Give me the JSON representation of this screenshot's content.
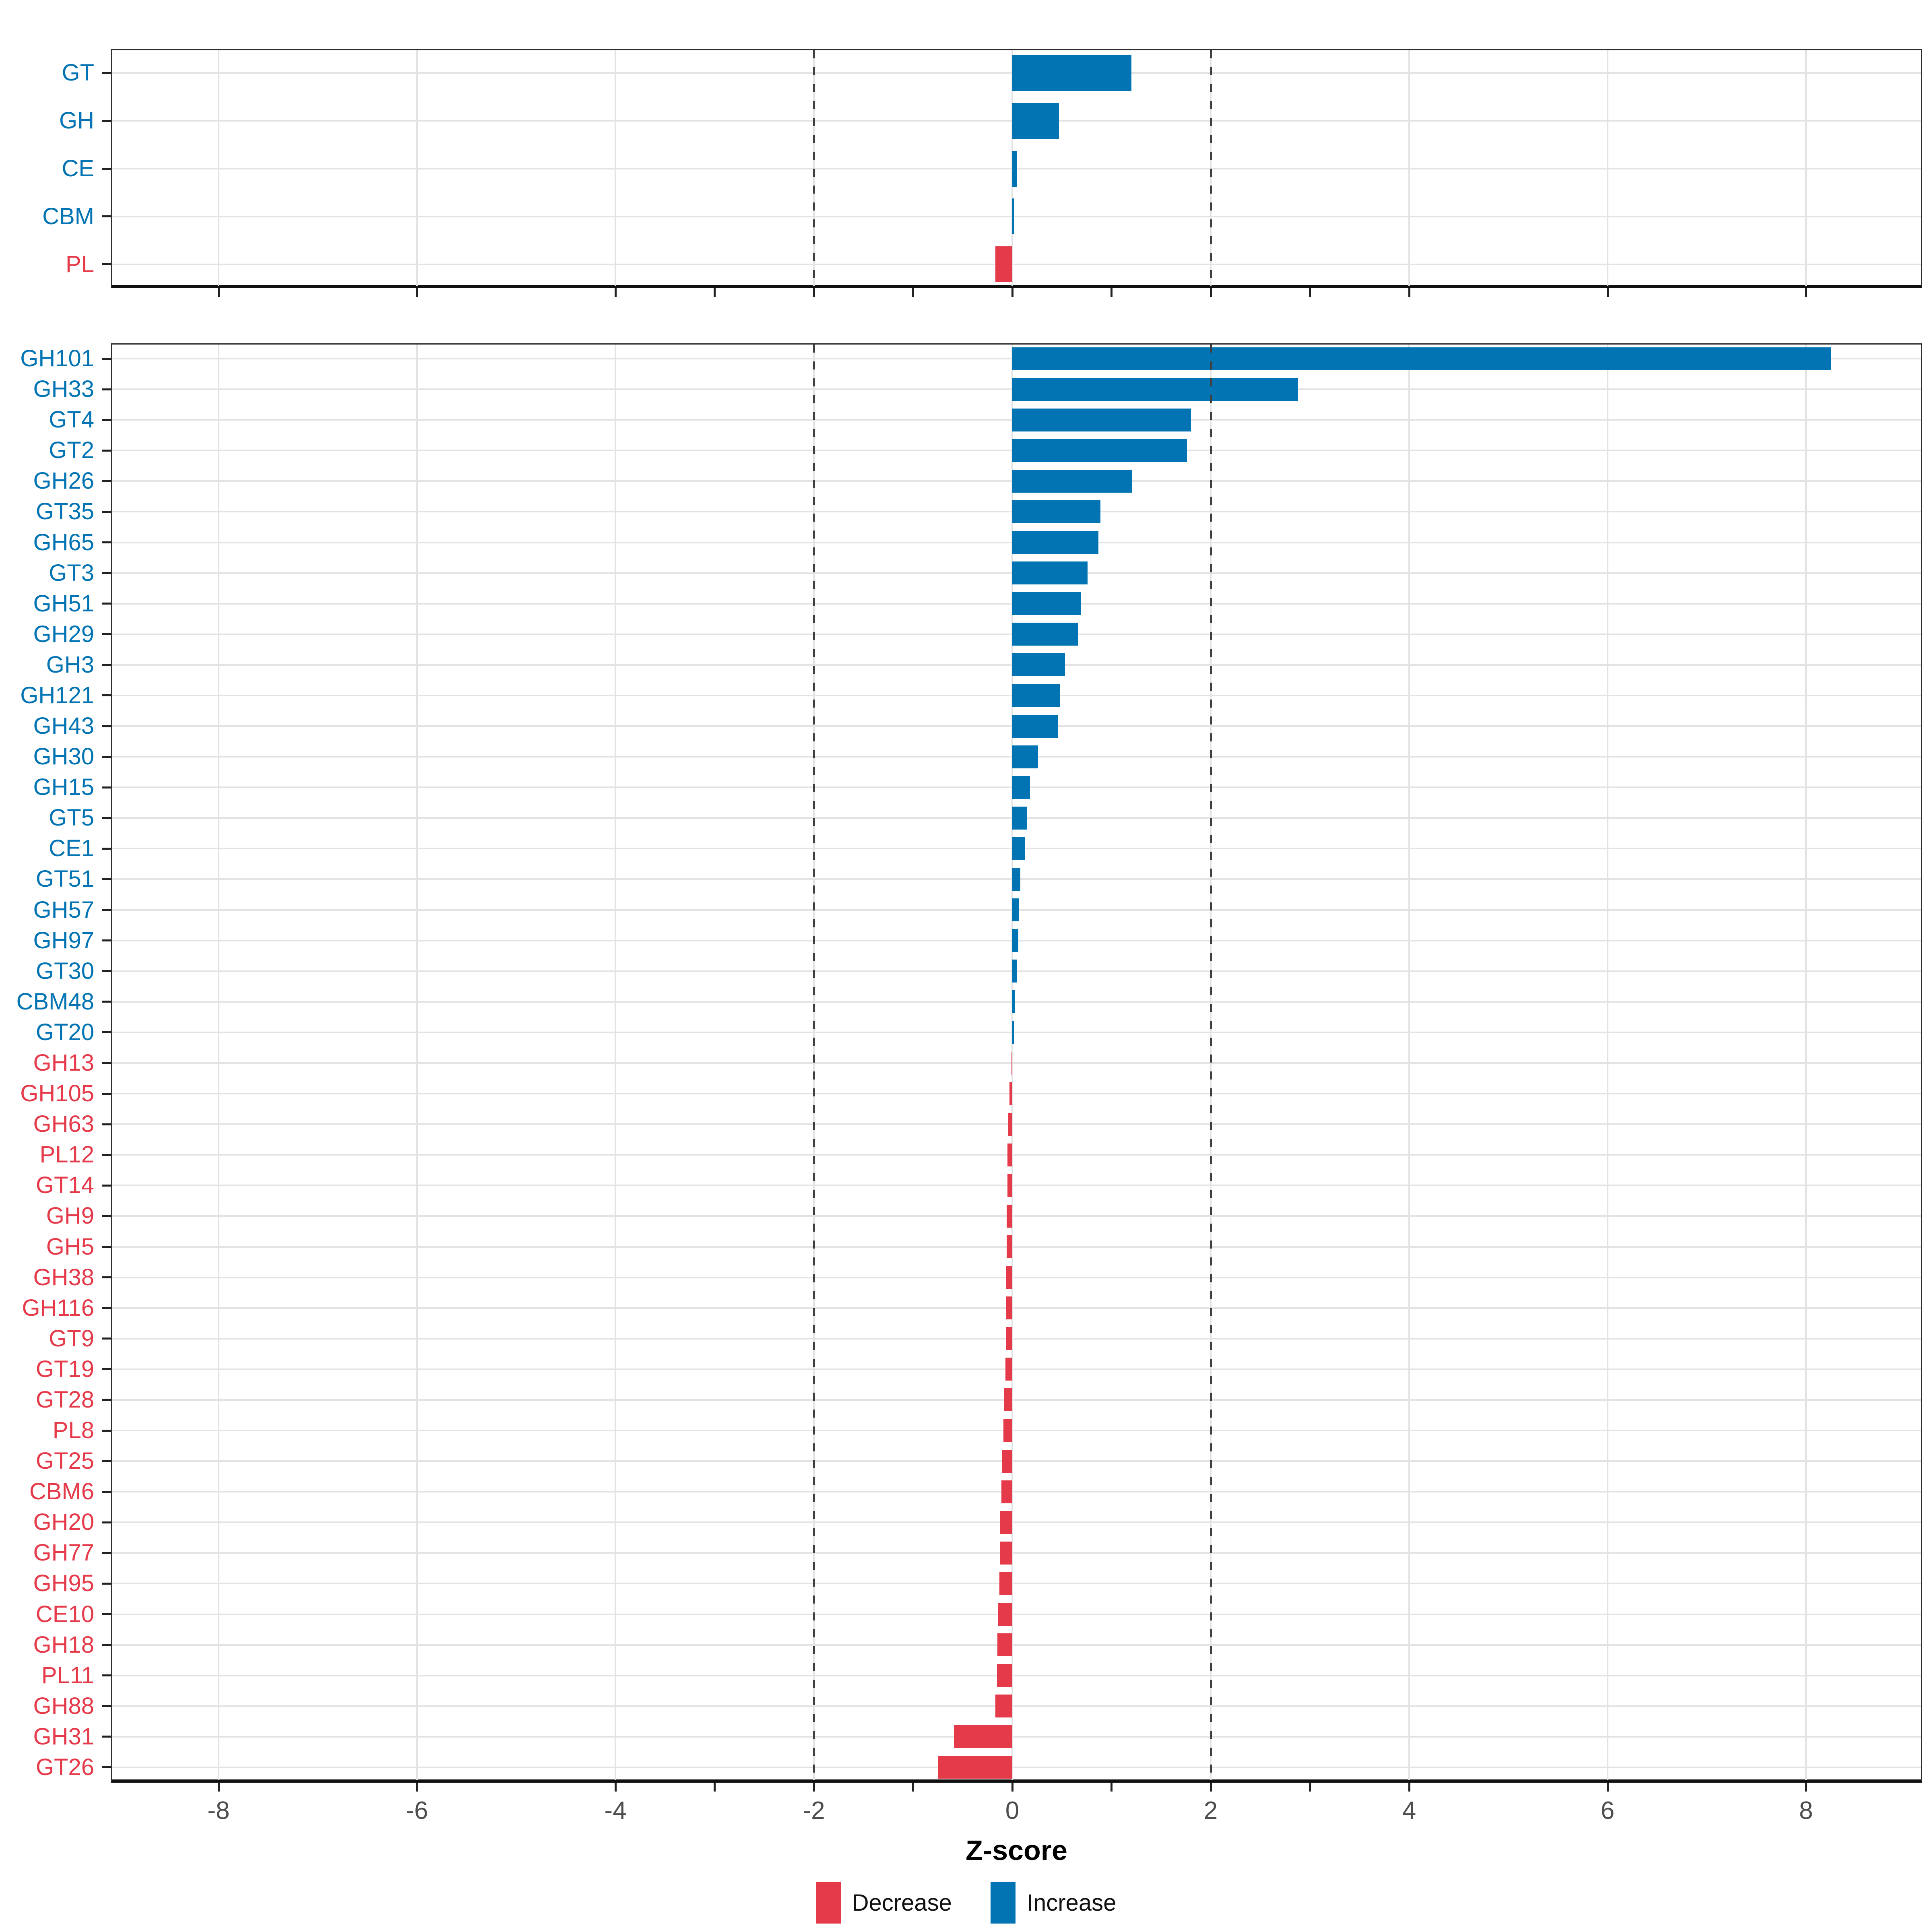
{
  "chart_data": {
    "type": "bar",
    "orientation": "horizontal",
    "title": "",
    "xlabel": "Z-score",
    "x_tick_labels": [
      -8,
      -6,
      -4,
      -2,
      0,
      2,
      4,
      6,
      8
    ],
    "x_minor_ticks": [
      -3,
      -1,
      1,
      3
    ],
    "xlim": [
      -9.1,
      9.2
    ],
    "reference_lines": [
      -2,
      2
    ],
    "grid": "major vertical at even values, horizontal per row",
    "legend_position": "bottom",
    "legend": [
      {
        "label": "Decrease",
        "color": "#E53A4A"
      },
      {
        "label": "Increase",
        "color": "#0274B3"
      }
    ],
    "colors": {
      "increase": "#0274B3",
      "decrease": "#E53A4A",
      "grid": "#e3e3e3",
      "reference": "#3f3f3f",
      "axis_text": "#4d4d4d"
    },
    "panels": [
      {
        "name": "class_panel",
        "categories": [
          "GT",
          "GH",
          "CE",
          "CBM",
          "PL"
        ],
        "values": [
          1.2,
          0.47,
          0.05,
          0.02,
          -0.17
        ]
      },
      {
        "name": "family_panel",
        "categories": [
          "GH101",
          "GH33",
          "GT4",
          "GT2",
          "GH26",
          "GT35",
          "GH65",
          "GT3",
          "GH51",
          "GH29",
          "GH3",
          "GH121",
          "GH43",
          "GH30",
          "GH15",
          "GT5",
          "CE1",
          "GT51",
          "GH57",
          "GH97",
          "GT30",
          "CBM48",
          "GT20",
          "GH13",
          "GH105",
          "GH63",
          "PL12",
          "GT14",
          "GH9",
          "GH5",
          "GH38",
          "GH116",
          "GT9",
          "GT19",
          "GT28",
          "PL8",
          "GT25",
          "CBM6",
          "GH20",
          "GH77",
          "GH95",
          "CE10",
          "GH18",
          "PL11",
          "GH88",
          "GH31",
          "GT26"
        ],
        "values": [
          8.25,
          2.88,
          1.8,
          1.76,
          1.21,
          0.89,
          0.87,
          0.76,
          0.69,
          0.66,
          0.53,
          0.48,
          0.46,
          0.26,
          0.18,
          0.15,
          0.13,
          0.08,
          0.07,
          0.06,
          0.05,
          0.03,
          0.02,
          -0.01,
          -0.03,
          -0.04,
          -0.05,
          -0.05,
          -0.055,
          -0.055,
          -0.06,
          -0.065,
          -0.065,
          -0.07,
          -0.08,
          -0.09,
          -0.1,
          -0.11,
          -0.12,
          -0.12,
          -0.13,
          -0.14,
          -0.15,
          -0.155,
          -0.17,
          -0.59,
          -0.75
        ]
      }
    ]
  }
}
